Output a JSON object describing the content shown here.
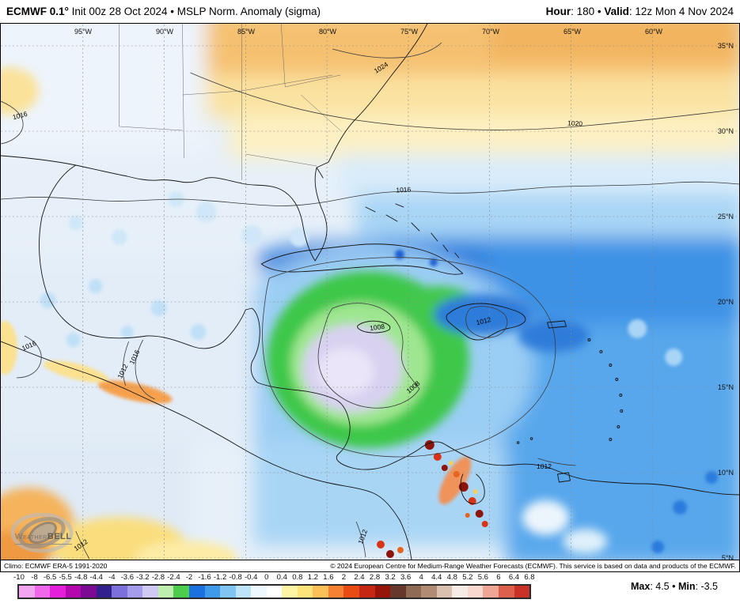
{
  "header": {
    "title_strong": "ECMWF 0.1°",
    "title_rest": " Init 00z 28 Oct 2024 • MSLP Norm. Anomaly (sigma)",
    "hour_strong": "Hour",
    "hour_rest": ": 180 • ",
    "valid_strong": "Valid",
    "valid_rest": ": 12z Mon 4 Nov 2024"
  },
  "map": {
    "lon_labels": [
      "95°W",
      "90°W",
      "85°W",
      "80°W",
      "75°W",
      "70°W",
      "65°W",
      "60°W"
    ],
    "lat_labels": [
      "35°N",
      "30°N",
      "25°N",
      "20°N",
      "15°N",
      "10°N",
      "5°N"
    ],
    "contour_labels": [
      "1016",
      "1024",
      "1020",
      "1016",
      "1016",
      "1016",
      "1012",
      "1008",
      "1012",
      "1008",
      "1012",
      "1012",
      "1012"
    ],
    "logo_weather": "Weather",
    "logo_bell": "BELL"
  },
  "footer": {
    "climo": "Climo: ECMWF ERA-5 1991-2020",
    "copyright": "© 2024 European Centre for Medium-Range Weather Forecasts (ECMWF). This service is based on data and products of the ECMWF."
  },
  "colorbar": {
    "tick_labels": [
      "-10",
      "-8",
      "-6.5",
      "-5.5",
      "-4.8",
      "-4.4",
      "-4",
      "-3.6",
      "-3.2",
      "-2.8",
      "-2.4",
      "-2",
      "-1.6",
      "-1.2",
      "-0.8",
      "-0.4",
      "0",
      "0.4",
      "0.8",
      "1.2",
      "1.6",
      "2",
      "2.4",
      "2.8",
      "3.2",
      "3.6",
      "4",
      "4.4",
      "4.8",
      "5.2",
      "5.6",
      "6",
      "6.4",
      "6.8"
    ],
    "segment_colors": [
      "#f4a5f1",
      "#ee68e9",
      "#e51edb",
      "#b507ae",
      "#7c0a95",
      "#33208f",
      "#7b70dc",
      "#a59ceb",
      "#cfc9f4",
      "#bfefae",
      "#4ecd4c",
      "#1b71dd",
      "#3f9ae9",
      "#7fc4f2",
      "#bde4f8",
      "#ecf8fe",
      "#ffffff",
      "#fdf5a4",
      "#fce47a",
      "#fbc158",
      "#f58233",
      "#e84c14",
      "#c52712",
      "#971408",
      "#67372b",
      "#8f6a55",
      "#b18b73",
      "#d9c0af",
      "#f5ece5",
      "#f9d9cf",
      "#f0a695",
      "#dd604d",
      "#c93327"
    ]
  },
  "stats": {
    "max_label": "Max",
    "max_value": ": 4.5 ",
    "sep": "• ",
    "min_label": "Min",
    "min_value": ": -3.5"
  }
}
